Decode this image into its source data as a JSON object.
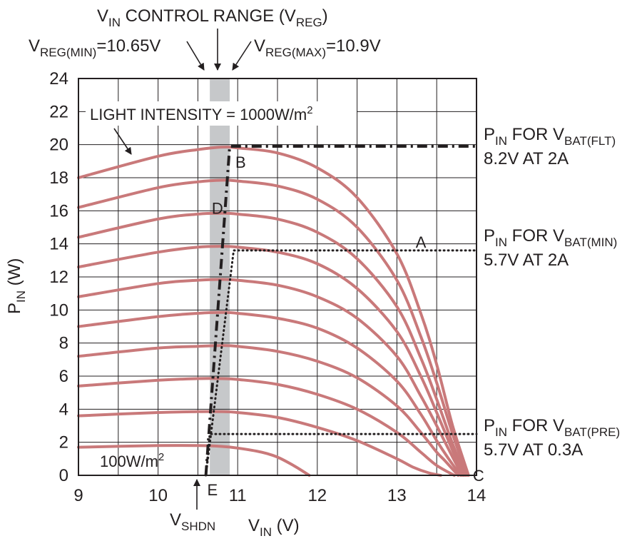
{
  "chart_data": {
    "type": "line",
    "title": "",
    "xlabel": "V",
    "xlabel_sub": "IN",
    "xlabel_unit": " (V)",
    "ylabel": "P",
    "ylabel_sub": "IN",
    "ylabel_unit": " (W)",
    "xlim": [
      9,
      14
    ],
    "ylim": [
      0,
      24
    ],
    "grid": true,
    "x_ticks": [
      9,
      10,
      11,
      12,
      13,
      14
    ],
    "y_ticks": [
      0,
      2,
      4,
      6,
      8,
      10,
      12,
      14,
      16,
      18,
      20,
      22,
      24
    ],
    "curve_color": "#c9797a",
    "curve_family": [
      {
        "x": [
          9,
          10,
          10.5,
          10.8,
          11,
          11.5,
          12,
          12.5,
          13,
          13.3,
          13.5,
          13.7,
          13.9
        ],
        "y": [
          18.0,
          19.3,
          19.7,
          19.85,
          19.8,
          19.5,
          18.6,
          16.8,
          13.4,
          9.8,
          6.7,
          3.0,
          0
        ]
      },
      {
        "x": [
          9,
          10,
          10.5,
          10.8,
          11,
          11.5,
          12,
          12.5,
          13,
          13.3,
          13.5,
          13.7,
          13.88
        ],
        "y": [
          16.2,
          17.4,
          17.75,
          17.85,
          17.8,
          17.5,
          16.7,
          15.0,
          11.8,
          8.4,
          5.6,
          2.5,
          0
        ]
      },
      {
        "x": [
          9,
          10,
          10.5,
          10.8,
          11,
          11.5,
          12,
          12.5,
          13,
          13.3,
          13.5,
          13.7,
          13.86
        ],
        "y": [
          14.4,
          15.5,
          15.8,
          15.85,
          15.8,
          15.5,
          14.7,
          13.1,
          10.2,
          7.1,
          4.6,
          1.9,
          0
        ]
      },
      {
        "x": [
          9,
          10,
          10.5,
          10.8,
          11,
          11.5,
          12,
          12.5,
          13,
          13.3,
          13.5,
          13.7,
          13.84
        ],
        "y": [
          12.6,
          13.5,
          13.8,
          13.85,
          13.8,
          13.5,
          12.8,
          11.3,
          8.7,
          6.0,
          3.8,
          1.5,
          0
        ]
      },
      {
        "x": [
          9,
          10,
          10.5,
          10.8,
          11,
          11.5,
          12,
          12.5,
          13,
          13.3,
          13.5,
          13.7,
          13.82
        ],
        "y": [
          10.8,
          11.6,
          11.8,
          11.85,
          11.8,
          11.5,
          10.8,
          9.5,
          7.2,
          4.8,
          3.0,
          1.1,
          0
        ]
      },
      {
        "x": [
          9,
          10,
          10.5,
          10.8,
          11,
          11.5,
          12,
          12.5,
          13,
          13.3,
          13.5,
          13.65,
          13.8
        ],
        "y": [
          9.0,
          9.6,
          9.8,
          9.85,
          9.8,
          9.5,
          8.9,
          7.7,
          5.7,
          3.7,
          2.1,
          1.0,
          0
        ]
      },
      {
        "x": [
          9,
          10,
          10.5,
          10.8,
          11,
          11.5,
          12,
          12.5,
          13,
          13.3,
          13.5,
          13.6,
          13.77
        ],
        "y": [
          7.2,
          7.7,
          7.8,
          7.85,
          7.8,
          7.5,
          6.9,
          5.9,
          4.2,
          2.6,
          1.4,
          0.9,
          0
        ]
      },
      {
        "x": [
          9,
          10,
          10.5,
          10.8,
          11,
          11.5,
          12,
          12.5,
          13,
          13.3,
          13.5,
          13.72
        ],
        "y": [
          5.4,
          5.75,
          5.85,
          5.85,
          5.8,
          5.5,
          4.9,
          4.0,
          2.6,
          1.4,
          0.6,
          0
        ]
      },
      {
        "x": [
          9,
          10,
          10.5,
          10.8,
          11,
          11.5,
          12,
          12.5,
          13,
          13.2,
          13.4,
          13.55
        ],
        "y": [
          3.6,
          3.8,
          3.85,
          3.85,
          3.8,
          3.5,
          2.9,
          2.1,
          1.0,
          0.5,
          0.15,
          0
        ]
      },
      {
        "x": [
          9,
          10,
          10.5,
          10.8,
          11,
          11.3,
          11.5,
          11.7,
          11.9
        ],
        "y": [
          1.7,
          1.8,
          1.8,
          1.75,
          1.65,
          1.4,
          1.1,
          0.6,
          0
        ]
      }
    ],
    "vreg_band": [
      10.65,
      10.9
    ],
    "flt_path": {
      "x": [
        10.6,
        10.9,
        14.0
      ],
      "y": [
        0,
        19.9,
        19.9
      ]
    },
    "min_path": {
      "x": [
        10.6,
        10.95,
        14.0
      ],
      "y": [
        0,
        13.6,
        13.6
      ]
    },
    "pre_path": {
      "x": [
        10.6,
        10.65,
        14.0
      ],
      "y": [
        0,
        2.5,
        2.5
      ]
    },
    "points": [
      {
        "label": "A",
        "x": 13.2,
        "y": 13.6
      },
      {
        "label": "B",
        "x": 10.9,
        "y": 19.9
      },
      {
        "label": "C",
        "x": 13.9,
        "y": 0
      },
      {
        "label": "D",
        "x": 10.8,
        "y": 16.0
      },
      {
        "label": "E",
        "x": 10.6,
        "y": 0
      }
    ],
    "annotations": {
      "control_range": {
        "a": "V",
        "a_sub": "IN",
        "b": " CONTROL RANGE (V",
        "b_sub": "REG",
        "c": ")"
      },
      "vreg_min": {
        "a": "V",
        "a_sub": "REG(MIN)",
        "b": "=10.65V"
      },
      "vreg_max": {
        "a": "V",
        "a_sub": "REG(MAX)",
        "b": "=10.9V"
      },
      "light_intensity": {
        "a": "LIGHT INTENSITY = 1000W/m",
        "sup": "2"
      },
      "low_intensity": {
        "a": "100W/m",
        "sup": "2"
      },
      "vshdn": {
        "a": "V",
        "a_sub": "SHDN"
      },
      "flt": {
        "l1a": "P",
        "l1a_sub": "IN",
        "l1b": " FOR V",
        "l1b_sub": "BAT(FLT)",
        "l2": "8.2V AT 2A"
      },
      "min": {
        "l1a": "P",
        "l1a_sub": "IN",
        "l1b": " FOR V",
        "l1b_sub": "BAT(MIN)",
        "l2": "5.7V AT 2A"
      },
      "pre": {
        "l1a": "P",
        "l1a_sub": "IN",
        "l1b": " FOR V",
        "l1b_sub": "BAT(PRE)",
        "l2": "5.7V AT 0.3A"
      }
    }
  }
}
